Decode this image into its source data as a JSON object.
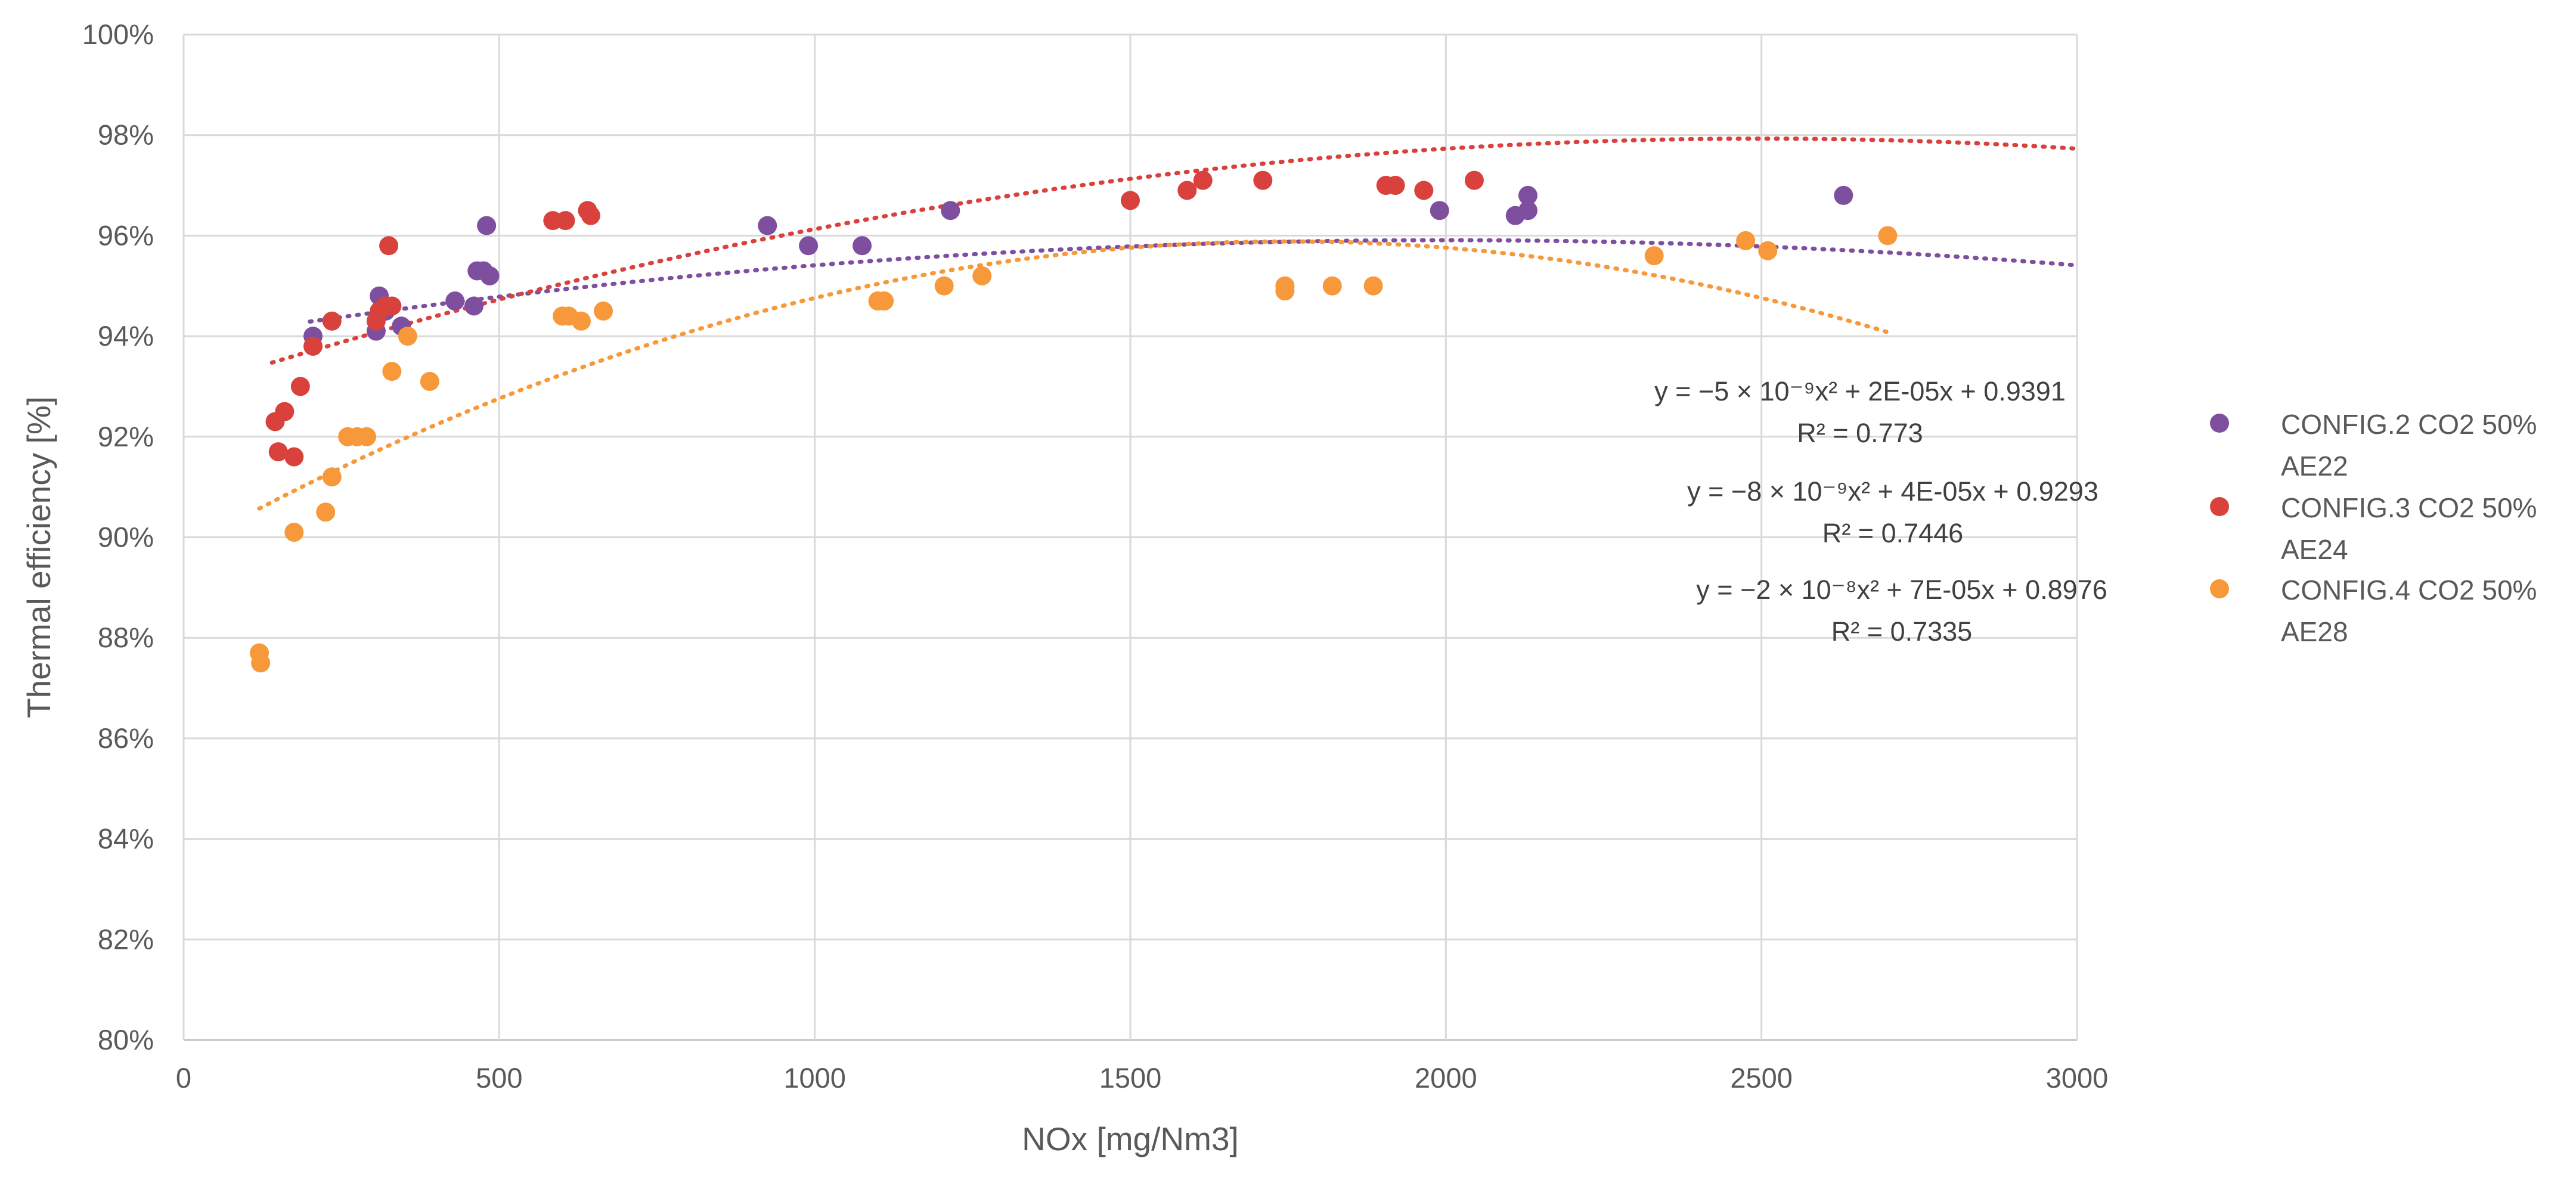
{
  "chart_data": {
    "type": "scatter",
    "xlabel": "NOx [mg/Nm3]",
    "ylabel": "Thermal efficiency [%]",
    "xlim": [
      0,
      3000
    ],
    "ylim": [
      80,
      100
    ],
    "x_ticks": [
      0,
      500,
      1000,
      1500,
      2000,
      2500,
      3000
    ],
    "y_ticks": [
      80,
      82,
      84,
      86,
      88,
      90,
      92,
      94,
      96,
      98,
      100
    ],
    "y_tick_suffix": "%",
    "grid": true,
    "legend_position": "right",
    "series": [
      {
        "name": "CONFIG.2 CO2 50% AE22",
        "legend_lines": [
          "CONFIG.2 CO2 50%",
          "AE22"
        ],
        "color": "#7f4f9f",
        "points": [
          [
            205,
            94.0
          ],
          [
            305,
            94.1
          ],
          [
            310,
            94.8
          ],
          [
            320,
            94.5
          ],
          [
            345,
            94.2
          ],
          [
            430,
            94.7
          ],
          [
            460,
            94.6
          ],
          [
            465,
            95.3
          ],
          [
            475,
            95.3
          ],
          [
            485,
            95.2
          ],
          [
            480,
            96.2
          ],
          [
            925,
            96.2
          ],
          [
            990,
            95.8
          ],
          [
            1075,
            95.8
          ],
          [
            1215,
            96.5
          ],
          [
            1990,
            96.5
          ],
          [
            2110,
            96.4
          ],
          [
            2130,
            96.5
          ],
          [
            2130,
            96.8
          ],
          [
            2630,
            96.8
          ]
        ],
        "trendline": {
          "type": "poly2",
          "a": -5e-09,
          "b": 2e-05,
          "c": 0.9391,
          "x_range": [
            200,
            3000
          ]
        },
        "equation": "y = −5 × 10⁻⁹x² + 2E-05x + 0.9391",
        "r2": "R² = 0.773"
      },
      {
        "name": "CONFIG.3 CO2 50% AE24",
        "legend_lines": [
          "CONFIG.3 CO2 50%",
          "AE24"
        ],
        "color": "#d9413d",
        "points": [
          [
            145,
            92.3
          ],
          [
            150,
            91.7
          ],
          [
            160,
            92.5
          ],
          [
            175,
            91.6
          ],
          [
            185,
            93.0
          ],
          [
            205,
            93.8
          ],
          [
            235,
            94.3
          ],
          [
            305,
            94.3
          ],
          [
            310,
            94.5
          ],
          [
            320,
            94.6
          ],
          [
            325,
            95.8
          ],
          [
            330,
            94.6
          ],
          [
            585,
            96.3
          ],
          [
            605,
            96.3
          ],
          [
            640,
            96.5
          ],
          [
            645,
            96.4
          ],
          [
            1500,
            96.7
          ],
          [
            1590,
            96.9
          ],
          [
            1615,
            97.1
          ],
          [
            1710,
            97.1
          ],
          [
            1905,
            97.0
          ],
          [
            1920,
            97.0
          ],
          [
            1965,
            96.9
          ],
          [
            2045,
            97.1
          ]
        ],
        "trendline": {
          "type": "poly2",
          "a": -8e-09,
          "b": 4e-05,
          "c": 0.9293,
          "x_range": [
            140,
            3000
          ]
        },
        "equation": "y = −8 × 10⁻⁹x² + 4E-05x + 0.9293",
        "r2": "R² = 0.7446"
      },
      {
        "name": "CONFIG.4 CO2 50% AE28",
        "legend_lines": [
          "CONFIG.4 CO2 50%",
          "AE28"
        ],
        "color": "#f7993a",
        "points": [
          [
            120,
            87.7
          ],
          [
            122,
            87.5
          ],
          [
            175,
            90.1
          ],
          [
            225,
            90.5
          ],
          [
            235,
            91.2
          ],
          [
            260,
            92.0
          ],
          [
            275,
            92.0
          ],
          [
            290,
            92.0
          ],
          [
            330,
            93.3
          ],
          [
            355,
            94.0
          ],
          [
            390,
            93.1
          ],
          [
            600,
            94.4
          ],
          [
            610,
            94.4
          ],
          [
            630,
            94.3
          ],
          [
            665,
            94.5
          ],
          [
            1100,
            94.7
          ],
          [
            1110,
            94.7
          ],
          [
            1205,
            95.0
          ],
          [
            1265,
            95.2
          ],
          [
            1745,
            95.0
          ],
          [
            1745,
            94.9
          ],
          [
            1820,
            95.0
          ],
          [
            1885,
            95.0
          ],
          [
            2330,
            95.6
          ],
          [
            2475,
            95.9
          ],
          [
            2510,
            95.7
          ],
          [
            2700,
            96.0
          ]
        ],
        "trendline": {
          "type": "poly2",
          "a": -2e-08,
          "b": 7e-05,
          "c": 0.8976,
          "x_range": [
            120,
            2700
          ]
        },
        "equation": "y = −2 × 10⁻⁸x² + 7E-05x + 0.8976",
        "r2": "R² = 0.7335"
      }
    ]
  }
}
